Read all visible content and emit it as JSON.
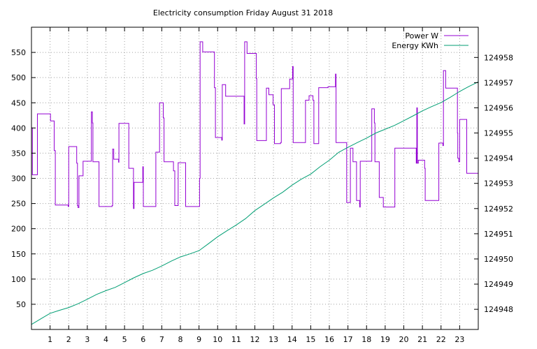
{
  "chart_data": {
    "type": "line",
    "title": "Electricity consumption Friday August 31 2018",
    "xlabel": "",
    "ylabel": "",
    "y2label": "",
    "xlim": [
      0,
      24
    ],
    "ylim": [
      0,
      600
    ],
    "y2lim": [
      124947.2,
      124959.2
    ],
    "grid": true,
    "legend_position": "top-right",
    "x_ticks": [
      1,
      2,
      3,
      4,
      5,
      6,
      7,
      8,
      9,
      10,
      11,
      12,
      13,
      14,
      15,
      16,
      17,
      18,
      19,
      20,
      21,
      22,
      23
    ],
    "y_ticks": [
      50,
      100,
      150,
      200,
      250,
      300,
      350,
      400,
      450,
      500,
      550
    ],
    "y2_ticks": [
      124948,
      124949,
      124950,
      124951,
      124952,
      124953,
      124954,
      124955,
      124956,
      124957,
      124958
    ],
    "series": [
      {
        "name": "Power W",
        "axis": "y",
        "color": "#9400d3",
        "step": true,
        "points": [
          [
            0.0,
            400
          ],
          [
            0.05,
            307
          ],
          [
            0.3,
            307
          ],
          [
            0.32,
            428
          ],
          [
            1.0,
            428
          ],
          [
            1.02,
            414
          ],
          [
            1.2,
            414
          ],
          [
            1.22,
            355
          ],
          [
            1.28,
            247
          ],
          [
            1.95,
            247
          ],
          [
            1.97,
            244
          ],
          [
            2.0,
            363
          ],
          [
            2.4,
            363
          ],
          [
            2.43,
            330
          ],
          [
            2.47,
            246
          ],
          [
            2.5,
            242
          ],
          [
            2.55,
            305
          ],
          [
            2.75,
            305
          ],
          [
            2.77,
            334
          ],
          [
            3.2,
            334
          ],
          [
            3.22,
            432
          ],
          [
            3.27,
            410
          ],
          [
            3.3,
            333
          ],
          [
            3.6,
            333
          ],
          [
            3.63,
            244
          ],
          [
            4.3,
            244
          ],
          [
            4.33,
            246
          ],
          [
            4.36,
            358
          ],
          [
            4.42,
            338
          ],
          [
            4.65,
            338
          ],
          [
            4.68,
            332
          ],
          [
            4.7,
            409
          ],
          [
            5.2,
            409
          ],
          [
            5.23,
            320
          ],
          [
            5.45,
            320
          ],
          [
            5.48,
            240
          ],
          [
            5.51,
            292
          ],
          [
            5.95,
            292
          ],
          [
            5.98,
            323
          ],
          [
            6.01,
            244
          ],
          [
            6.65,
            244
          ],
          [
            6.68,
            352
          ],
          [
            6.85,
            352
          ],
          [
            6.88,
            450
          ],
          [
            7.05,
            450
          ],
          [
            7.08,
            420
          ],
          [
            7.12,
            333
          ],
          [
            7.6,
            333
          ],
          [
            7.63,
            315
          ],
          [
            7.7,
            246
          ],
          [
            7.85,
            246
          ],
          [
            7.88,
            331
          ],
          [
            8.25,
            331
          ],
          [
            8.28,
            244
          ],
          [
            9.0,
            244
          ],
          [
            9.03,
            300
          ],
          [
            9.06,
            571
          ],
          [
            9.18,
            571
          ],
          [
            9.2,
            551
          ],
          [
            9.8,
            551
          ],
          [
            9.83,
            480
          ],
          [
            9.88,
            381
          ],
          [
            10.2,
            381
          ],
          [
            10.22,
            376
          ],
          [
            10.25,
            486
          ],
          [
            10.4,
            486
          ],
          [
            10.43,
            463
          ],
          [
            11.4,
            463
          ],
          [
            11.42,
            408
          ],
          [
            11.45,
            571
          ],
          [
            11.55,
            571
          ],
          [
            11.58,
            548
          ],
          [
            12.05,
            548
          ],
          [
            12.08,
            498
          ],
          [
            12.1,
            375
          ],
          [
            12.6,
            375
          ],
          [
            12.62,
            479
          ],
          [
            12.72,
            479
          ],
          [
            12.75,
            466
          ],
          [
            12.95,
            466
          ],
          [
            12.98,
            446
          ],
          [
            13.05,
            369
          ],
          [
            13.35,
            369
          ],
          [
            13.38,
            371
          ],
          [
            13.42,
            478
          ],
          [
            13.85,
            478
          ],
          [
            13.87,
            497
          ],
          [
            14.0,
            497
          ],
          [
            14.03,
            522
          ],
          [
            14.06,
            371
          ],
          [
            14.7,
            371
          ],
          [
            14.72,
            455
          ],
          [
            14.88,
            455
          ],
          [
            14.91,
            464
          ],
          [
            15.1,
            464
          ],
          [
            15.12,
            455
          ],
          [
            15.17,
            369
          ],
          [
            15.4,
            369
          ],
          [
            15.43,
            480
          ],
          [
            15.9,
            480
          ],
          [
            15.93,
            482
          ],
          [
            16.3,
            482
          ],
          [
            16.33,
            507
          ],
          [
            16.36,
            371
          ],
          [
            16.9,
            371
          ],
          [
            16.93,
            252
          ],
          [
            17.1,
            252
          ],
          [
            17.13,
            360
          ],
          [
            17.25,
            360
          ],
          [
            17.27,
            333
          ],
          [
            17.43,
            333
          ],
          [
            17.46,
            256
          ],
          [
            17.6,
            256
          ],
          [
            17.63,
            243
          ],
          [
            17.66,
            334
          ],
          [
            18.25,
            334
          ],
          [
            18.28,
            438
          ],
          [
            18.4,
            438
          ],
          [
            18.42,
            410
          ],
          [
            18.45,
            333
          ],
          [
            18.65,
            333
          ],
          [
            18.68,
            262
          ],
          [
            18.88,
            262
          ],
          [
            18.9,
            243
          ],
          [
            19.5,
            243
          ],
          [
            19.52,
            360
          ],
          [
            20.65,
            360
          ],
          [
            20.67,
            330
          ],
          [
            20.7,
            440
          ],
          [
            20.73,
            330
          ],
          [
            20.78,
            336
          ],
          [
            21.1,
            336
          ],
          [
            21.12,
            320
          ],
          [
            21.15,
            256
          ],
          [
            21.85,
            256
          ],
          [
            21.88,
            370
          ],
          [
            22.08,
            370
          ],
          [
            22.1,
            365
          ],
          [
            22.13,
            514
          ],
          [
            22.22,
            514
          ],
          [
            22.25,
            479
          ],
          [
            22.85,
            479
          ],
          [
            22.88,
            390
          ],
          [
            22.9,
            340
          ],
          [
            22.95,
            333
          ],
          [
            23.0,
            417
          ],
          [
            23.35,
            417
          ],
          [
            23.38,
            310
          ],
          [
            24.0,
            310
          ]
        ]
      },
      {
        "name": "Energy KWh",
        "axis": "y2",
        "color": "#009e73",
        "step": false,
        "points": [
          [
            0.0,
            124947.4
          ],
          [
            0.5,
            124947.62
          ],
          [
            1.0,
            124947.84
          ],
          [
            1.5,
            124947.96
          ],
          [
            2.0,
            124948.07
          ],
          [
            2.5,
            124948.22
          ],
          [
            3.0,
            124948.4
          ],
          [
            3.5,
            124948.59
          ],
          [
            4.0,
            124948.74
          ],
          [
            4.5,
            124948.87
          ],
          [
            5.0,
            124949.06
          ],
          [
            5.5,
            124949.25
          ],
          [
            6.0,
            124949.42
          ],
          [
            6.5,
            124949.55
          ],
          [
            7.0,
            124949.72
          ],
          [
            7.5,
            124949.91
          ],
          [
            8.0,
            124950.08
          ],
          [
            8.5,
            124950.2
          ],
          [
            9.0,
            124950.33
          ],
          [
            9.5,
            124950.6
          ],
          [
            10.0,
            124950.88
          ],
          [
            10.5,
            124951.12
          ],
          [
            11.0,
            124951.35
          ],
          [
            11.5,
            124951.6
          ],
          [
            12.0,
            124951.92
          ],
          [
            12.5,
            124952.17
          ],
          [
            13.0,
            124952.42
          ],
          [
            13.5,
            124952.65
          ],
          [
            14.0,
            124952.93
          ],
          [
            14.5,
            124953.17
          ],
          [
            15.0,
            124953.37
          ],
          [
            15.5,
            124953.66
          ],
          [
            16.0,
            124953.92
          ],
          [
            16.5,
            124954.23
          ],
          [
            17.0,
            124954.43
          ],
          [
            17.5,
            124954.62
          ],
          [
            18.0,
            124954.8
          ],
          [
            18.5,
            124955.0
          ],
          [
            19.0,
            124955.15
          ],
          [
            19.5,
            124955.3
          ],
          [
            20.0,
            124955.49
          ],
          [
            20.5,
            124955.68
          ],
          [
            21.0,
            124955.88
          ],
          [
            21.5,
            124956.05
          ],
          [
            22.0,
            124956.21
          ],
          [
            22.5,
            124956.42
          ],
          [
            23.0,
            124956.65
          ],
          [
            23.5,
            124956.85
          ],
          [
            24.0,
            124957.03
          ]
        ]
      }
    ]
  }
}
